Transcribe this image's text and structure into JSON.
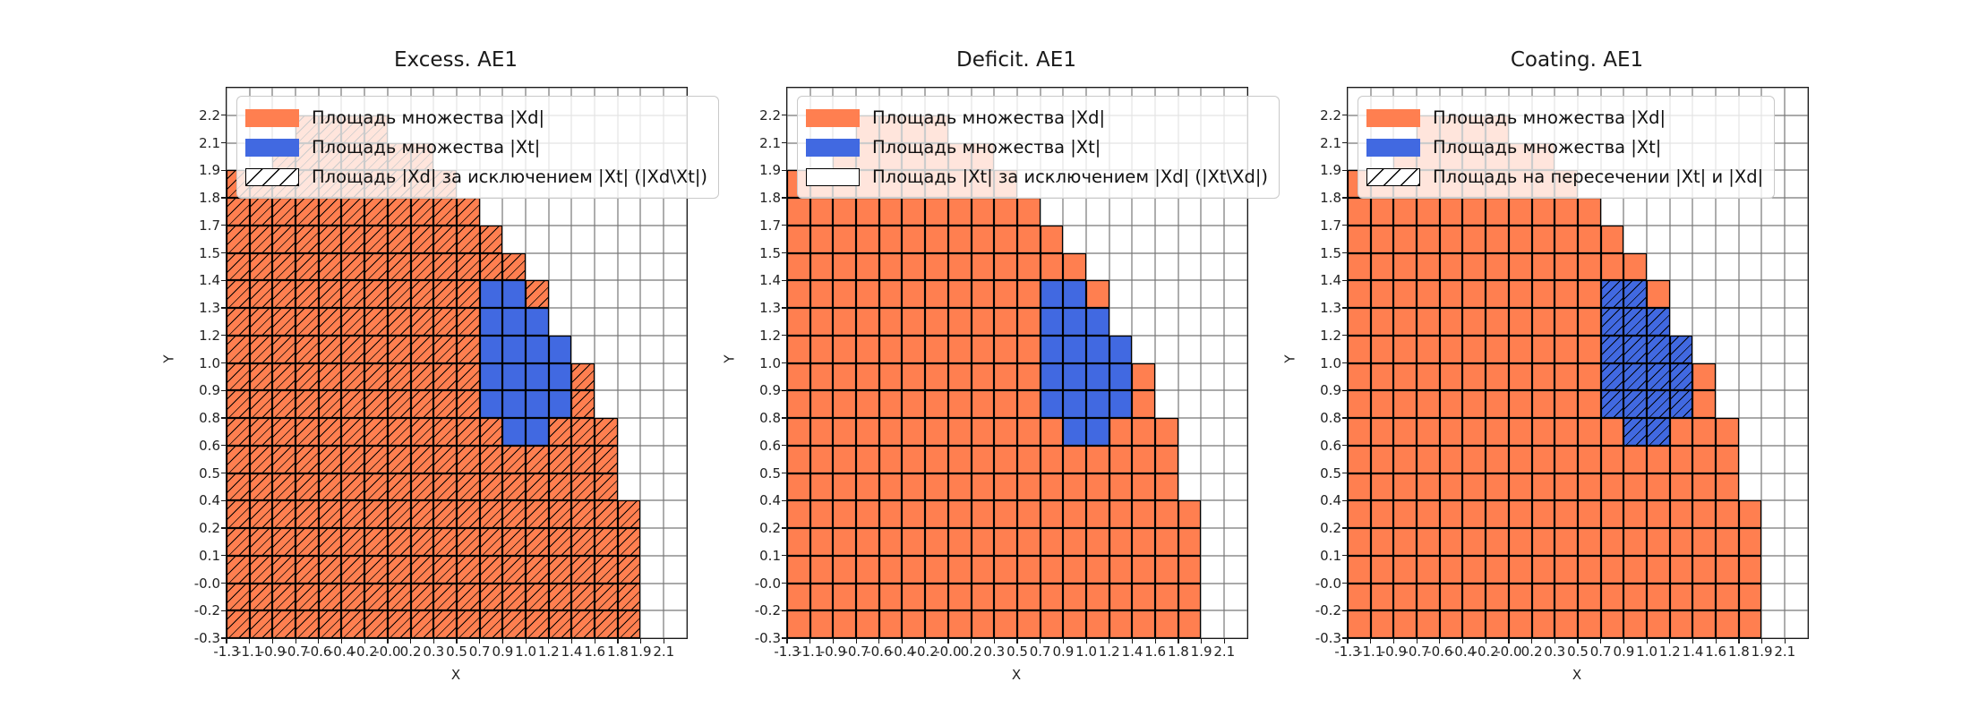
{
  "chart_data": {
    "type": "heatmap",
    "description_kind": "three grid-cell set-area plots",
    "xlabel": "X",
    "ylabel": "Y",
    "grid_cols": 20,
    "grid_rows": 20,
    "x_tick_labels": [
      "-1.3",
      "-1.1",
      "-0.9",
      "-0.7",
      "-0.6",
      "-0.4",
      "-0.2",
      "-0.0",
      "0.2",
      "0.3",
      "0.5",
      "0.7",
      "0.9",
      "1.0",
      "1.2",
      "1.4",
      "1.6",
      "1.8",
      "1.9",
      "2.1"
    ],
    "y_tick_labels_top_to_bottom": [
      "2.2",
      "2.1",
      "1.9",
      "1.8",
      "1.7",
      "1.5",
      "1.4",
      "1.3",
      "1.2",
      "1.0",
      "0.9",
      "0.8",
      "0.6",
      "0.5",
      "0.4",
      "0.2",
      "0.1",
      "-0.0",
      "-0.2",
      "-0.3"
    ],
    "xd_column_heights_bottom_up": [
      17,
      17,
      18,
      19,
      19,
      19,
      19,
      18,
      18,
      17,
      16,
      15,
      14,
      13,
      11,
      10,
      8,
      5,
      0,
      0
    ],
    "xt_cells_row_col": [
      [
        12,
        11
      ],
      [
        12,
        12
      ],
      [
        11,
        11
      ],
      [
        11,
        12
      ],
      [
        11,
        13
      ],
      [
        10,
        11
      ],
      [
        10,
        12
      ],
      [
        10,
        13
      ],
      [
        10,
        14
      ],
      [
        9,
        11
      ],
      [
        9,
        12
      ],
      [
        9,
        13
      ],
      [
        9,
        14
      ],
      [
        8,
        11
      ],
      [
        8,
        12
      ],
      [
        8,
        13
      ],
      [
        8,
        14
      ],
      [
        7,
        12
      ],
      [
        7,
        13
      ]
    ],
    "colors": {
      "xd_fill": "#FF7F50",
      "xt_fill": "#4169E1",
      "cell_edge": "#000000",
      "grid_line": "#777777"
    },
    "legend_position": "upper left, semi-transparent white box",
    "plots": [
      {
        "title": "Excess. AE1",
        "hatch_mode": "xd_cells",
        "legend": [
          "Площадь множества |Xd|",
          "Площадь множества  |Xt|",
          "Площадь |Xd| за исключением |Xt| (|Xd\\Xt|)"
        ]
      },
      {
        "title": "Deficit. AE1",
        "hatch_mode": "none",
        "legend": [
          "Площадь множества |Xd|",
          "Площадь множества  |Xt|",
          "Площадь |Xt| за исключением |Xd| (|Xt\\Xd|)"
        ]
      },
      {
        "title": "Coating. AE1",
        "hatch_mode": "xt_cells",
        "legend": [
          "Площадь множества |Xd|",
          "Площадь множества  |Xt|",
          "Площадь на пересечении |Xt| и |Xd|"
        ]
      }
    ]
  },
  "layout_axis_labels": {
    "x": "X",
    "y": "Y"
  }
}
